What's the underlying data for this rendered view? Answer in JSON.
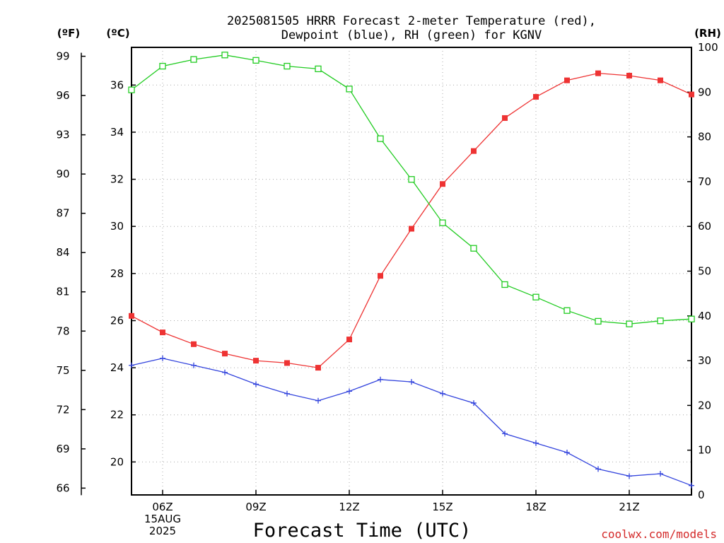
{
  "chart_data": {
    "type": "line",
    "title_lines": [
      "2025081505 HRRR Forecast 2-meter Temperature (red),",
      "Dewpoint (blue), RH (green) for KGNV"
    ],
    "xlabel": "Forecast Time (UTC)",
    "credit": "coolwx.com/models",
    "x": [
      "05Z",
      "06Z",
      "07Z",
      "08Z",
      "09Z",
      "10Z",
      "11Z",
      "12Z",
      "13Z",
      "14Z",
      "15Z",
      "16Z",
      "17Z",
      "18Z",
      "19Z",
      "20Z",
      "21Z",
      "22Z",
      "23Z"
    ],
    "x_tick_labels": [
      {
        "x": "06Z",
        "lines": [
          "06Z",
          "15AUG",
          "2025"
        ]
      },
      {
        "x": "09Z",
        "lines": [
          "09Z"
        ]
      },
      {
        "x": "12Z",
        "lines": [
          "12Z"
        ]
      },
      {
        "x": "15Z",
        "lines": [
          "15Z"
        ]
      },
      {
        "x": "18Z",
        "lines": [
          "18Z"
        ]
      },
      {
        "x": "21Z",
        "lines": [
          "21Z"
        ]
      }
    ],
    "axes": {
      "fahrenheit": {
        "unit_label": "(ºF)",
        "ticks": [
          66,
          69,
          72,
          75,
          78,
          81,
          84,
          87,
          90,
          93,
          96,
          99
        ]
      },
      "celsius": {
        "unit_label": "(ºC)",
        "ticks": [
          20,
          22,
          24,
          26,
          28,
          30,
          32,
          34,
          36
        ],
        "range": [
          18.6,
          37.6
        ]
      },
      "rh": {
        "unit_label": "(RH)",
        "ticks": [
          0,
          10,
          20,
          30,
          40,
          50,
          60,
          70,
          80,
          90,
          100
        ],
        "range": [
          0,
          100
        ]
      }
    },
    "series": [
      {
        "name": "Temperature",
        "axis": "celsius",
        "color": "#ee3333",
        "marker": "filled-square",
        "values": [
          26.2,
          25.5,
          25.0,
          24.6,
          24.3,
          24.2,
          24.0,
          25.2,
          27.9,
          29.9,
          31.8,
          33.2,
          34.6,
          35.5,
          36.2,
          36.5,
          36.4,
          36.2,
          35.6
        ]
      },
      {
        "name": "Dewpoint",
        "axis": "celsius",
        "color": "#3344dd",
        "marker": "plus",
        "values": [
          24.1,
          24.4,
          24.1,
          23.8,
          23.3,
          22.9,
          22.6,
          23.0,
          23.5,
          23.4,
          22.9,
          22.5,
          21.2,
          20.8,
          20.4,
          19.7,
          19.4,
          19.5,
          19.0
        ]
      },
      {
        "name": "RH",
        "axis": "rh",
        "color": "#22cc22",
        "marker": "open-square",
        "values": [
          90.5,
          95.8,
          97.3,
          98.3,
          97.1,
          95.8,
          95.2,
          90.7,
          79.6,
          70.5,
          60.8,
          55.1,
          47.0,
          44.2,
          41.2,
          38.8,
          38.2,
          38.9,
          39.3
        ]
      }
    ],
    "grid": true
  }
}
